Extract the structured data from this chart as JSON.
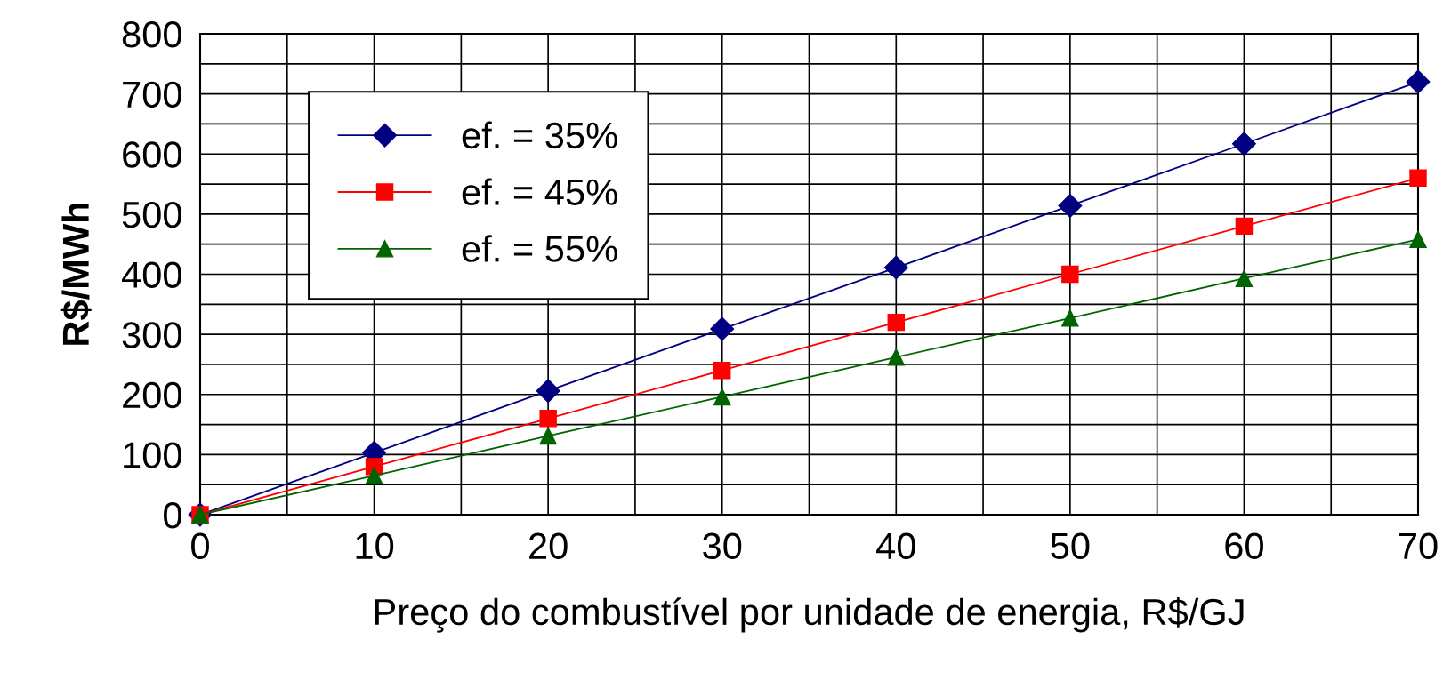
{
  "chart_data": {
    "type": "line",
    "xlabel": "Preço do combustível por unidade de energia, R$/GJ",
    "ylabel": "R$/MWh",
    "x": [
      0,
      10,
      20,
      30,
      40,
      50,
      60,
      70
    ],
    "series": [
      {
        "name": "ef. = 35%",
        "color": "#000080",
        "marker": "diamond",
        "values": [
          0,
          103,
          206,
          309,
          411,
          514,
          617,
          720
        ]
      },
      {
        "name": "ef. = 45%",
        "color": "#ff0000",
        "marker": "square",
        "values": [
          0,
          80,
          160,
          240,
          320,
          400,
          480,
          560
        ]
      },
      {
        "name": "ef. = 55%",
        "color": "#006400",
        "marker": "triangle",
        "values": [
          0,
          65,
          131,
          196,
          262,
          327,
          393,
          458
        ]
      }
    ],
    "xlim": [
      0,
      70
    ],
    "ylim": [
      0,
      800
    ],
    "xticks": [
      0,
      {
        "value": 5,
        "label": null
      },
      10,
      {
        "value": 15,
        "label": null
      },
      20,
      {
        "value": 25,
        "label": null
      },
      30,
      {
        "value": 35,
        "label": null
      },
      40,
      {
        "value": 45,
        "label": null
      },
      50,
      {
        "value": 55,
        "label": null
      },
      60,
      {
        "value": 65,
        "label": null
      },
      70
    ],
    "yticks": [
      0,
      {
        "value": 50,
        "label": null
      },
      100,
      {
        "value": 150,
        "label": null
      },
      200,
      {
        "value": 250,
        "label": null
      },
      300,
      {
        "value": 350,
        "label": null
      },
      400,
      {
        "value": 450,
        "label": null
      },
      500,
      {
        "value": 550,
        "label": null
      },
      600,
      {
        "value": 650,
        "label": null
      },
      700,
      {
        "value": 750,
        "label": null
      },
      800
    ],
    "grid": true,
    "legend": "top left",
    "line_style": "solid"
  }
}
